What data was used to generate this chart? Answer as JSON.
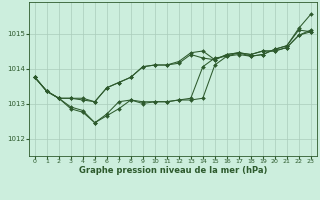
{
  "title": "Graphe pression niveau de la mer (hPa)",
  "background_color": "#cceedd",
  "grid_color": "#aaccbb",
  "line_color": "#2d5a2d",
  "xlim": [
    -0.5,
    23.5
  ],
  "ylim": [
    1011.5,
    1015.9
  ],
  "yticks": [
    1012,
    1013,
    1014,
    1015
  ],
  "xticks": [
    0,
    1,
    2,
    3,
    4,
    5,
    6,
    7,
    8,
    9,
    10,
    11,
    12,
    13,
    14,
    15,
    16,
    17,
    18,
    19,
    20,
    21,
    22,
    23
  ],
  "series": [
    [
      1013.75,
      1013.35,
      1013.15,
      1013.15,
      1013.15,
      1013.05,
      1013.45,
      1013.6,
      1013.75,
      1014.05,
      1014.1,
      1014.1,
      1014.15,
      1014.4,
      1014.3,
      1014.25,
      1014.4,
      1014.45,
      1014.4,
      1014.5,
      1014.5,
      1014.6,
      1014.95,
      1015.1
    ],
    [
      1013.75,
      1013.35,
      1013.15,
      1013.15,
      1013.1,
      1013.05,
      1013.45,
      1013.6,
      1013.75,
      1014.05,
      1014.1,
      1014.1,
      1014.2,
      1014.45,
      1014.5,
      1014.25,
      1014.4,
      1014.45,
      1014.4,
      1014.5,
      1014.5,
      1014.6,
      1014.95,
      1015.05
    ],
    [
      1013.75,
      1013.35,
      1013.15,
      1012.85,
      1012.75,
      1012.45,
      1012.65,
      1012.85,
      1013.1,
      1013.05,
      1013.05,
      1013.05,
      1013.1,
      1013.15,
      1014.05,
      1014.3,
      1014.35,
      1014.45,
      1014.35,
      1014.4,
      1014.55,
      1014.65,
      1015.15,
      1015.55
    ],
    [
      1013.75,
      1013.35,
      1013.15,
      1012.9,
      1012.8,
      1012.45,
      1012.7,
      1013.05,
      1013.1,
      1013.0,
      1013.05,
      1013.05,
      1013.1,
      1013.1,
      1013.15,
      1014.1,
      1014.35,
      1014.4,
      1014.35,
      1014.4,
      1014.55,
      1014.65,
      1015.1,
      1015.05
    ]
  ]
}
